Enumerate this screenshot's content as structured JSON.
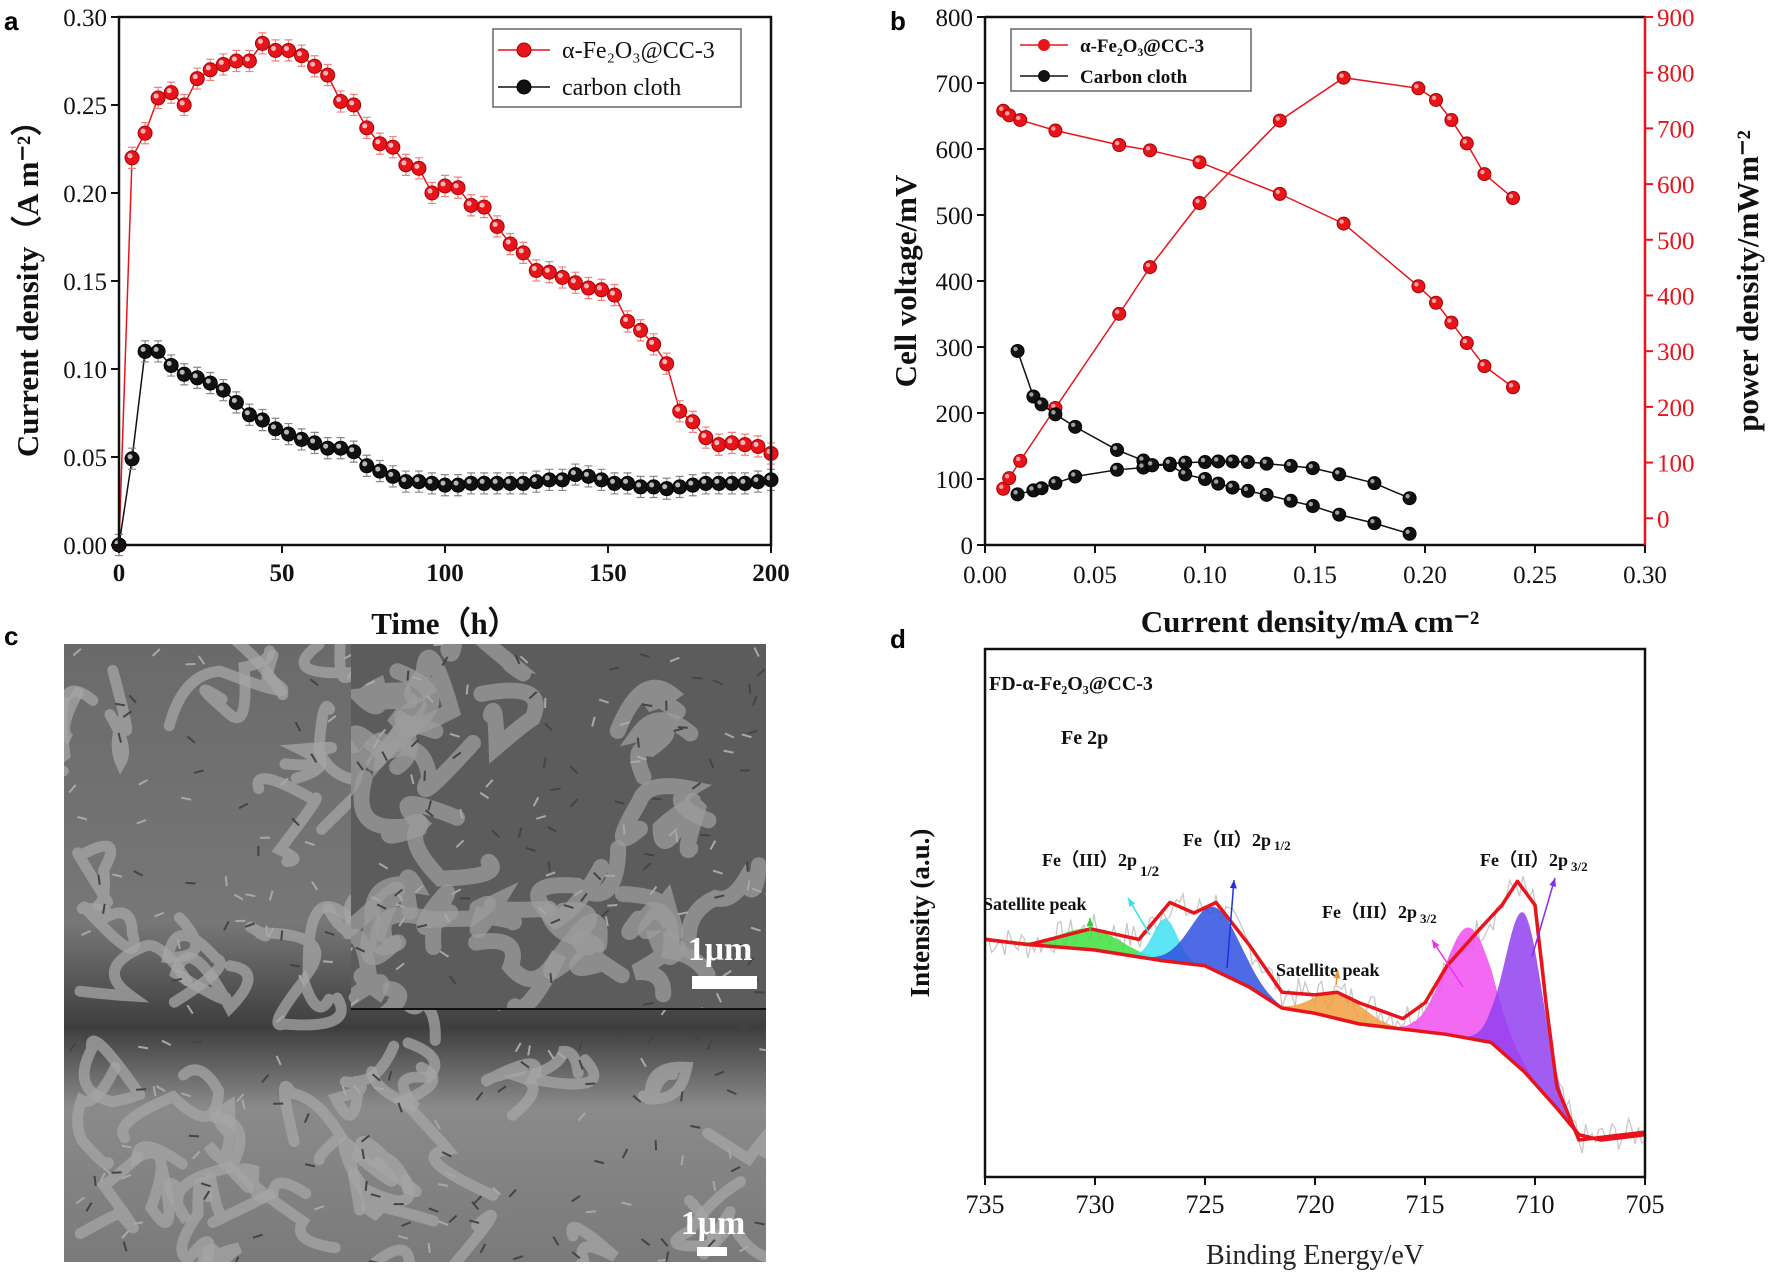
{
  "panel_labels": {
    "a": "a",
    "b": "b",
    "c": "c",
    "d": "d"
  },
  "colors": {
    "red": "#e8141c",
    "black": "#111111",
    "axis_right": "#e8141c"
  },
  "chart_data": [
    {
      "id": "a",
      "type": "line",
      "xlabel": "Time（h）",
      "ylabel": "Current density（A m⁻²）",
      "xlim": [
        0,
        200
      ],
      "ylim": [
        0,
        0.3
      ],
      "xticks": [
        "0",
        "50",
        "100",
        "150",
        "200"
      ],
      "xtick_values": [
        0,
        50,
        100,
        150,
        200
      ],
      "yticks": [
        "0.00",
        "0.05",
        "0.10",
        "0.15",
        "0.20",
        "0.25",
        "0.30"
      ],
      "ytick_values": [
        0,
        0.05,
        0.1,
        0.15,
        0.2,
        0.25,
        0.3
      ],
      "legend_position": "top-right",
      "error": 0.006,
      "x": [
        0,
        4,
        8,
        12,
        16,
        20,
        24,
        28,
        32,
        36,
        40,
        44,
        48,
        52,
        56,
        60,
        64,
        68,
        72,
        76,
        80,
        84,
        88,
        92,
        96,
        100,
        104,
        108,
        112,
        116,
        120,
        124,
        128,
        132,
        136,
        140,
        144,
        148,
        152,
        156,
        160,
        164,
        168,
        172,
        176,
        180,
        184,
        188,
        192,
        196,
        200
      ],
      "series": [
        {
          "name": "α-Fe₂O₃@CC-3",
          "color": "#e8141c",
          "values": [
            0,
            0.22,
            0.234,
            0.254,
            0.257,
            0.25,
            0.265,
            0.27,
            0.273,
            0.275,
            0.275,
            0.285,
            0.281,
            0.281,
            0.278,
            0.272,
            0.267,
            0.252,
            0.25,
            0.237,
            0.228,
            0.226,
            0.216,
            0.214,
            0.2,
            0.204,
            0.203,
            0.193,
            0.192,
            0.181,
            0.171,
            0.166,
            0.156,
            0.155,
            0.152,
            0.149,
            0.146,
            0.145,
            0.142,
            0.127,
            0.122,
            0.114,
            0.103,
            0.076,
            0.07,
            0.061,
            0.057,
            0.058,
            0.057,
            0.056,
            0.052
          ]
        },
        {
          "name": "carbon cloth",
          "color": "#111111",
          "values": [
            0,
            0.049,
            0.11,
            0.11,
            0.102,
            0.097,
            0.095,
            0.092,
            0.088,
            0.081,
            0.074,
            0.071,
            0.066,
            0.063,
            0.06,
            0.058,
            0.055,
            0.055,
            0.053,
            0.045,
            0.042,
            0.039,
            0.036,
            0.036,
            0.035,
            0.034,
            0.034,
            0.035,
            0.035,
            0.035,
            0.035,
            0.035,
            0.036,
            0.037,
            0.037,
            0.04,
            0.039,
            0.037,
            0.035,
            0.035,
            0.033,
            0.033,
            0.032,
            0.033,
            0.034,
            0.035,
            0.035,
            0.035,
            0.035,
            0.036,
            0.037
          ]
        }
      ]
    },
    {
      "id": "b",
      "type": "line",
      "xlabel": "Current density/mA cm⁻²",
      "ylabel": "Cell voltage/mV",
      "y2label": "power density/mWm⁻²",
      "xlim": [
        0,
        0.3
      ],
      "ylim": [
        0,
        800
      ],
      "y2lim": [
        -48,
        900
      ],
      "xticks": [
        "0.00",
        "0.05",
        "0.10",
        "0.15",
        "0.20",
        "0.25",
        "0.30"
      ],
      "xtick_values": [
        0,
        0.05,
        0.1,
        0.15,
        0.2,
        0.25,
        0.3
      ],
      "yticks": [
        "0",
        "100",
        "200",
        "300",
        "400",
        "500",
        "600",
        "700",
        "800"
      ],
      "ytick_values": [
        0,
        100,
        200,
        300,
        400,
        500,
        600,
        700,
        800
      ],
      "y2ticks": [
        "0",
        "100",
        "200",
        "300",
        "400",
        "500",
        "600",
        "700",
        "800",
        "900"
      ],
      "y2tick_values": [
        0,
        100,
        200,
        300,
        400,
        500,
        600,
        700,
        800,
        900
      ],
      "legend_position": "top-left",
      "legend": [
        {
          "name": "α-Fe₂O₃@CC-3",
          "color": "#e8141c"
        },
        {
          "name": "Carbon cloth",
          "color": "#111111"
        }
      ],
      "series": [
        {
          "name": "α-Fe₂O₃@CC-3 voltage",
          "axis": "left",
          "color": "#e8141c",
          "x": [
            0.0083,
            0.011,
            0.016,
            0.032,
            0.061,
            0.075,
            0.0975,
            0.134,
            0.163,
            0.197,
            0.205,
            0.212,
            0.219,
            0.227,
            0.24
          ],
          "values": [
            658,
            651,
            644,
            628,
            606,
            598,
            580,
            532,
            487,
            392,
            367,
            337,
            306,
            271,
            239
          ]
        },
        {
          "name": "α-Fe₂O₃@CC-3 power",
          "axis": "right",
          "color": "#e8141c",
          "x": [
            0.0083,
            0.011,
            0.016,
            0.032,
            0.061,
            0.075,
            0.0975,
            0.134,
            0.163,
            0.197,
            0.205,
            0.212,
            0.219,
            0.227,
            0.24
          ],
          "values": [
            53,
            72,
            103,
            198,
            367,
            451,
            566,
            714,
            791,
            772,
            751,
            715,
            673,
            618,
            575
          ]
        },
        {
          "name": "Carbon cloth voltage",
          "axis": "left",
          "color": "#111111",
          "x": [
            0.0148,
            0.022,
            0.0257,
            0.032,
            0.041,
            0.06,
            0.072,
            0.076,
            0.084,
            0.091,
            0.1,
            0.106,
            0.1125,
            0.1195,
            0.128,
            0.139,
            0.149,
            0.161,
            0.177,
            0.193
          ],
          "values": [
            294,
            225,
            213,
            198,
            179,
            144,
            128,
            121,
            121,
            107,
            100,
            93,
            87,
            82,
            76,
            67,
            59,
            46,
            33,
            17
          ]
        },
        {
          "name": "Carbon cloth power",
          "axis": "right",
          "color": "#111111",
          "x": [
            0.0148,
            0.022,
            0.0257,
            0.032,
            0.041,
            0.06,
            0.072,
            0.076,
            0.084,
            0.091,
            0.1,
            0.106,
            0.1125,
            0.1195,
            0.128,
            0.139,
            0.149,
            0.161,
            0.177,
            0.193
          ],
          "values": [
            43,
            50,
            54,
            63,
            75,
            87,
            91,
            95,
            98,
            100,
            101,
            102,
            102,
            101,
            98,
            94,
            90,
            79,
            63,
            36
          ]
        }
      ]
    },
    {
      "id": "d",
      "type": "area",
      "title": "FD-α-Fe₂O₃@CC-3",
      "subtitle": "Fe 2p",
      "xlabel": "Binding Energy/eV",
      "ylabel": "Intensity (a.u.)",
      "xlim": [
        735,
        705
      ],
      "ylim": [
        0,
        100
      ],
      "xticks": [
        "735",
        "730",
        "725",
        "720",
        "715",
        "710",
        "705"
      ],
      "xtick_values": [
        735,
        730,
        725,
        720,
        715,
        710,
        705
      ],
      "background": {
        "x": [
          735,
          733,
          730,
          727,
          725,
          723,
          721.5,
          720,
          718,
          716,
          714,
          712,
          710.5,
          709,
          708,
          707,
          705
        ],
        "y": [
          45,
          44,
          43,
          41,
          40,
          36,
          32,
          31,
          29,
          28,
          27,
          25.5,
          20,
          13,
          8,
          7,
          8
        ]
      },
      "envelope": {
        "x": [
          735,
          733,
          730.2,
          728,
          726.6,
          725.5,
          724.5,
          723,
          721.5,
          720,
          719,
          718,
          716,
          715,
          714,
          712.5,
          711.5,
          710.8,
          710,
          709.5,
          709,
          708,
          707,
          705
        ],
        "y": [
          45,
          44,
          47,
          45,
          52,
          50,
          52,
          44,
          35,
          34.5,
          35,
          33,
          30,
          33,
          40,
          47,
          51.5,
          56,
          51.5,
          33,
          17,
          7,
          7.5,
          8.5
        ]
      },
      "peaks": [
        {
          "name": "Satellite peak",
          "center": 730.2,
          "height": 4,
          "fwhm": 3.2,
          "color": "#3ee03e"
        },
        {
          "name": "Fe（III）2p 1/2",
          "center": 726.8,
          "height": 8,
          "fwhm": 1.3,
          "color": "#40e0f0"
        },
        {
          "name": "Fe（II）2p 1/2",
          "center": 724.5,
          "height": 12,
          "fwhm": 2.6,
          "color": "#3050e0"
        },
        {
          "name": "Satellite peak",
          "center": 718.9,
          "height": 5,
          "fwhm": 2.6,
          "color": "#f0a040"
        },
        {
          "name": "Fe（III）2p 3/2",
          "center": 713.0,
          "height": 21,
          "fwhm": 2.6,
          "color": "#f050f0"
        },
        {
          "name": "Fe（II）2p 3/2",
          "center": 710.5,
          "height": 30,
          "fwhm": 2.0,
          "color": "#9040f0"
        }
      ],
      "annotations": {
        "sat1": "Satellite peak",
        "fe3_12_main": "Fe（III）2p",
        "fe3_12_sub": "1/2",
        "fe2_12_main": "Fe（II）2p",
        "fe2_12_sub": "1/2",
        "sat2": "Satellite peak",
        "fe3_32_main": "Fe（III）2p",
        "fe3_32_sub": "3/2",
        "fe2_32_main": "Fe（II）2p",
        "fe2_32_sub": "3/2"
      }
    }
  ],
  "sem": {
    "scale_bar_inset": "1μm",
    "scale_bar_main": "1μm"
  }
}
